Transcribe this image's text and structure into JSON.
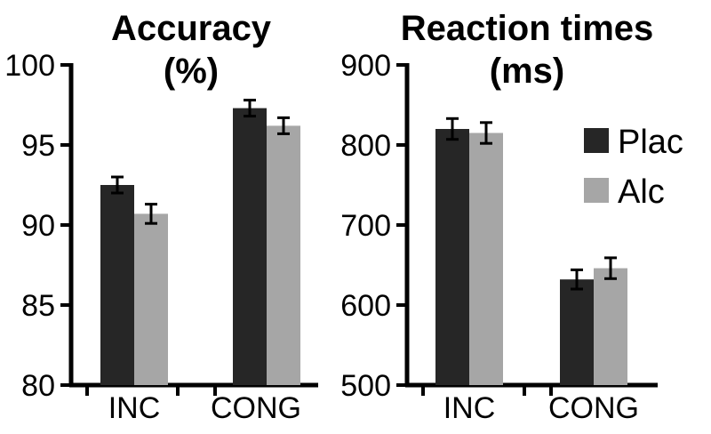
{
  "chart_data": [
    {
      "type": "bar",
      "title": [
        "Accuracy",
        "(%)"
      ],
      "categories": [
        "INC",
        "CONG"
      ],
      "ylim": [
        80,
        100
      ],
      "yticks": [
        "80",
        "85",
        "90",
        "95",
        "100"
      ],
      "series": [
        {
          "name": "Plac",
          "color": "#262626",
          "values": [
            92.5,
            97.3
          ],
          "errors": [
            0.5,
            0.5
          ]
        },
        {
          "name": "Alc",
          "color": "#a6a6a6",
          "values": [
            90.7,
            96.2
          ],
          "errors": [
            0.6,
            0.5
          ]
        }
      ]
    },
    {
      "type": "bar",
      "title": [
        "Reaction times",
        "(ms)"
      ],
      "categories": [
        "INC",
        "CONG"
      ],
      "ylim": [
        500,
        900
      ],
      "yticks": [
        "500",
        "600",
        "700",
        "800",
        "900"
      ],
      "series": [
        {
          "name": "Plac",
          "color": "#262626",
          "values": [
            820,
            632
          ],
          "errors": [
            13,
            12
          ]
        },
        {
          "name": "Alc",
          "color": "#a6a6a6",
          "values": [
            815,
            646
          ],
          "errors": [
            13,
            13
          ]
        }
      ]
    }
  ],
  "legend": {
    "items": [
      {
        "label": "Plac",
        "color": "#262626"
      },
      {
        "label": "Alc",
        "color": "#a6a6a6"
      }
    ]
  }
}
